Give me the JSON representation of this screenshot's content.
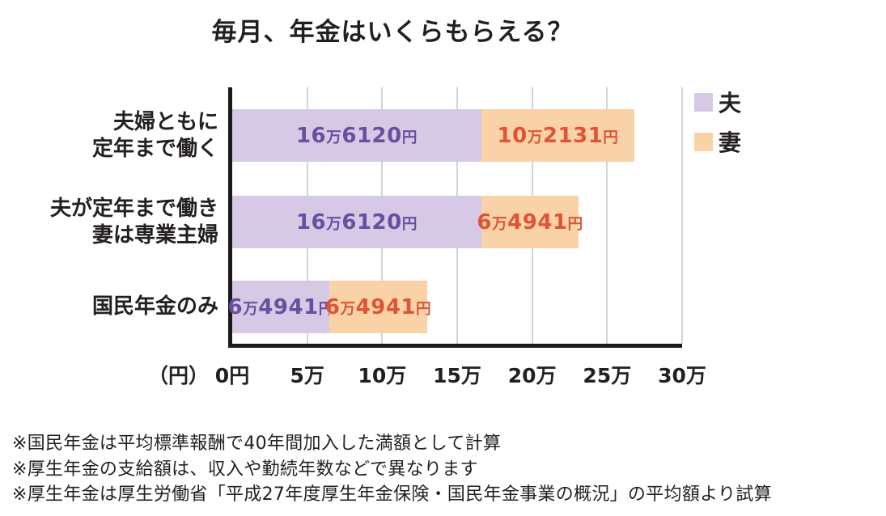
{
  "title": "毎月、年金はいくらもらえる？",
  "chart_data": {
    "type": "bar",
    "orientation": "horizontal",
    "stacked": true,
    "title": "毎月、年金はいくらもらえる？",
    "categories": [
      {
        "lines": [
          "夫婦ともに",
          "定年まで働く"
        ]
      },
      {
        "lines": [
          "夫が定年まで働き",
          "妻は専業主婦"
        ]
      },
      {
        "lines": [
          "国民年金のみ"
        ]
      }
    ],
    "series": [
      {
        "key": "husband",
        "name": "夫",
        "color": "#d6c9e5",
        "label_color": "#6a4fa0",
        "values": [
          166120,
          166120,
          64941
        ],
        "value_labels": [
          "16万6120円",
          "16万6120円",
          "6万4941円"
        ]
      },
      {
        "key": "wife",
        "name": "妻",
        "color": "#f9d3a7",
        "label_color": "#e05435",
        "values": [
          102131,
          64941,
          64941
        ],
        "value_labels": [
          "10万2131円",
          "6万4941円",
          "6万4941円"
        ]
      }
    ],
    "xlim": [
      0,
      300000
    ],
    "x_ticks": [
      {
        "value": 0,
        "label": "0円"
      },
      {
        "value": 50000,
        "label": "5万"
      },
      {
        "value": 100000,
        "label": "10万"
      },
      {
        "value": 150000,
        "label": "15万"
      },
      {
        "value": 200000,
        "label": "20万"
      },
      {
        "value": 250000,
        "label": "25万"
      },
      {
        "value": 300000,
        "label": "30万"
      }
    ],
    "axis_unit_label": "（円）",
    "grid": true,
    "legend_position": "top-right"
  },
  "notes": [
    "※国民年金は平均標準報酬で40年間加入した満額として計算",
    "※厚生年金の支給額は、収入や勤続年数などで異なります",
    "※厚生年金は厚生労働省「平成27年度厚生年金保険・国民年金事業の概況」の平均額より試算"
  ],
  "colors": {
    "grid_line": "#cdd6db",
    "axis_line": "#1d1a1a",
    "text": "#231f1f"
  }
}
